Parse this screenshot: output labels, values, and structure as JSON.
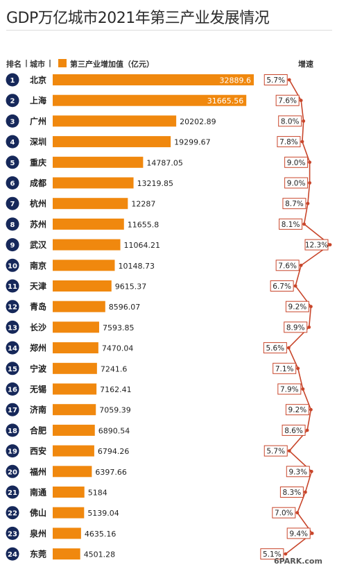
{
  "chart_data": {
    "type": "bar",
    "orientation": "horizontal",
    "title": "GDP万亿城市2021年第三产业发展情况",
    "header": {
      "rank": "排名",
      "city": "城市",
      "legend": "第三产业增加值（亿元）",
      "growth": "增速"
    },
    "ranks": [
      "1",
      "2",
      "3",
      "4",
      "5",
      "6",
      "7",
      "8",
      "9",
      "10",
      "11",
      "12",
      "13",
      "14",
      "15",
      "16",
      "17",
      "18",
      "19",
      "20",
      "21",
      "22",
      "23",
      "24"
    ],
    "categories": [
      "北京",
      "上海",
      "广州",
      "深圳",
      "重庆",
      "成都",
      "杭州",
      "苏州",
      "武汉",
      "南京",
      "天津",
      "青岛",
      "长沙",
      "郑州",
      "宁波",
      "无锡",
      "济南",
      "合肥",
      "西安",
      "福州",
      "南通",
      "佛山",
      "泉州",
      "东莞"
    ],
    "value_labels": [
      "32889.6",
      "31665.56",
      "20202.89",
      "19299.67",
      "14787.05",
      "13219.85",
      "12287",
      "11655.8",
      "11064.21",
      "10148.73",
      "9615.37",
      "8596.07",
      "7593.85",
      "7470.04",
      "7241.6",
      "7162.41",
      "7059.39",
      "6890.54",
      "6794.26",
      "6397.66",
      "5184",
      "5139.04",
      "4635.16",
      "4501.28"
    ],
    "values": [
      32889.6,
      31665.56,
      20202.89,
      19299.67,
      14787.05,
      13219.85,
      12287,
      11655.8,
      11064.21,
      10148.73,
      9615.37,
      8596.07,
      7593.85,
      7470.04,
      7241.6,
      7162.41,
      7059.39,
      6890.54,
      6794.26,
      6397.66,
      5184,
      5139.04,
      4635.16,
      4501.28
    ],
    "growth_labels": [
      "5.7%",
      "7.6%",
      "8.0%",
      "7.8%",
      "9.0%",
      "9.0%",
      "8.7%",
      "8.1%",
      "12.3%",
      "7.6%",
      "6.7%",
      "9.2%",
      "8.9%",
      "5.6%",
      "7.1%",
      "7.9%",
      "9.2%",
      "8.6%",
      "5.7%",
      "9.3%",
      "8.3%",
      "7.0%",
      "9.4%",
      "5.1%"
    ],
    "growth": [
      5.7,
      7.6,
      8.0,
      7.8,
      9.0,
      9.0,
      8.7,
      8.1,
      12.3,
      7.6,
      6.7,
      9.2,
      8.9,
      5.6,
      7.1,
      7.9,
      9.2,
      8.6,
      5.7,
      9.3,
      8.3,
      7.0,
      9.4,
      5.1
    ],
    "xlim": [
      0,
      32889.6
    ],
    "growth_range": [
      5.1,
      12.3
    ],
    "colors": {
      "bar": "#f0880e",
      "rank_badge": "#16285a",
      "growth_line": "#c8452a",
      "growth_box_border": "#c8452a"
    }
  },
  "watermark": {
    "text": "6PARK.com"
  }
}
